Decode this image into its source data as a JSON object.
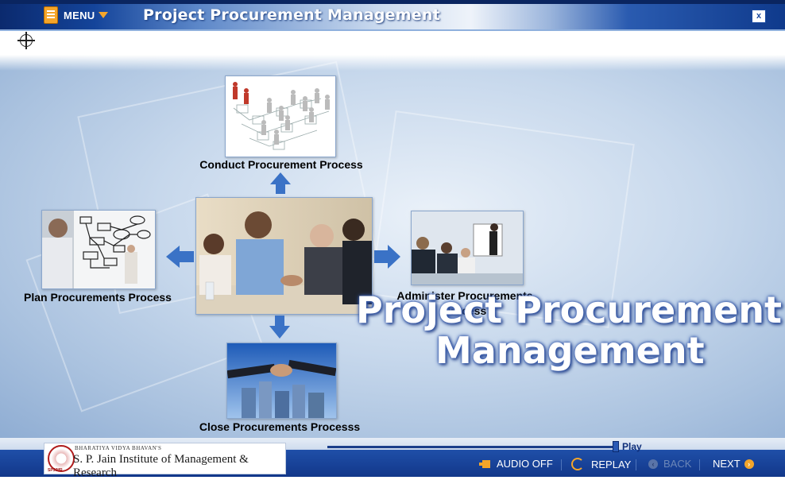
{
  "header": {
    "menu_label": "MENU",
    "title": "Project Procurement Management",
    "close_label": "x"
  },
  "diagram": {
    "top_label": "Conduct Procurement Process",
    "left_label": "Plan Procurements Process",
    "right_label_line1": "Administer Procurements",
    "right_label_line2": "Process",
    "bottom_label": "Close Procurements Processs"
  },
  "hero": {
    "line1": "Project Procurement",
    "line2": "Management"
  },
  "footer": {
    "org_small": "BHARATIYA VIDYA BHAVAN'S",
    "org_name": "S. P. Jain Institute of Management & Research",
    "org_abbr": "SPJIMR",
    "play_label": "Play",
    "progress": 0.99,
    "audio_label": "AUDIO OFF",
    "replay_label": "REPLAY",
    "back_label": "BACK",
    "next_label": "NEXT"
  },
  "colors": {
    "accent": "#f4a52a",
    "primary": "#12378a",
    "arrow": "#3a72c6"
  }
}
